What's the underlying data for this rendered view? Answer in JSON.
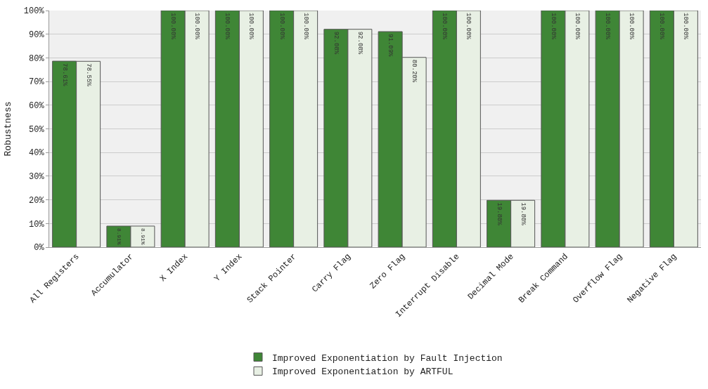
{
  "chart_data": {
    "type": "bar",
    "ylabel": "Robustness",
    "categories": [
      "All Registers",
      "Accumulator",
      "X Index",
      "Y Index",
      "Stack Pointer",
      "Carry Flag",
      "Zero Flag",
      "Interrupt Disable",
      "Decimal Mode",
      "Break Command",
      "Overflow Flag",
      "Negative Flag"
    ],
    "series": [
      {
        "name": "Improved Exponentiation by Fault Injection",
        "color": "#3f8636",
        "values": [
          78.61,
          8.91,
          100,
          100,
          100,
          92.08,
          91.09,
          100,
          19.8,
          100,
          100,
          100
        ],
        "value_labels": [
          "78.61%",
          "8.91%",
          "100.00%",
          "100.00%",
          "100.00%",
          "92.08%",
          "91.09%",
          "100.00%",
          "19.80%",
          "100.00%",
          "100.00%",
          "100.00%"
        ]
      },
      {
        "name": "Improved Exponentiation by ARTFUL",
        "color": "#e8f0e4",
        "values": [
          78.55,
          8.91,
          100,
          100,
          100,
          92.08,
          80.2,
          100,
          19.8,
          100,
          100,
          100
        ],
        "value_labels": [
          "78.55%",
          "8.91%",
          "100.00%",
          "100.00%",
          "100.00%",
          "92.08%",
          "80.20%",
          "100.00%",
          "19.80%",
          "100.00%",
          "100.00%",
          "100.00%"
        ]
      }
    ],
    "ylim": [
      0,
      100
    ],
    "yticks": [
      {
        "value": 0,
        "label": "0%"
      },
      {
        "value": 10,
        "label": "10%"
      },
      {
        "value": 20,
        "label": "20%"
      },
      {
        "value": 30,
        "label": "30%"
      },
      {
        "value": 40,
        "label": "40%"
      },
      {
        "value": 50,
        "label": "50%"
      },
      {
        "value": 60,
        "label": "60%"
      },
      {
        "value": 70,
        "label": "70%"
      },
      {
        "value": 80,
        "label": "80%"
      },
      {
        "value": 90,
        "label": "90%"
      },
      {
        "value": 100,
        "label": "100%"
      }
    ],
    "grid": "y",
    "legend": "bottom"
  }
}
